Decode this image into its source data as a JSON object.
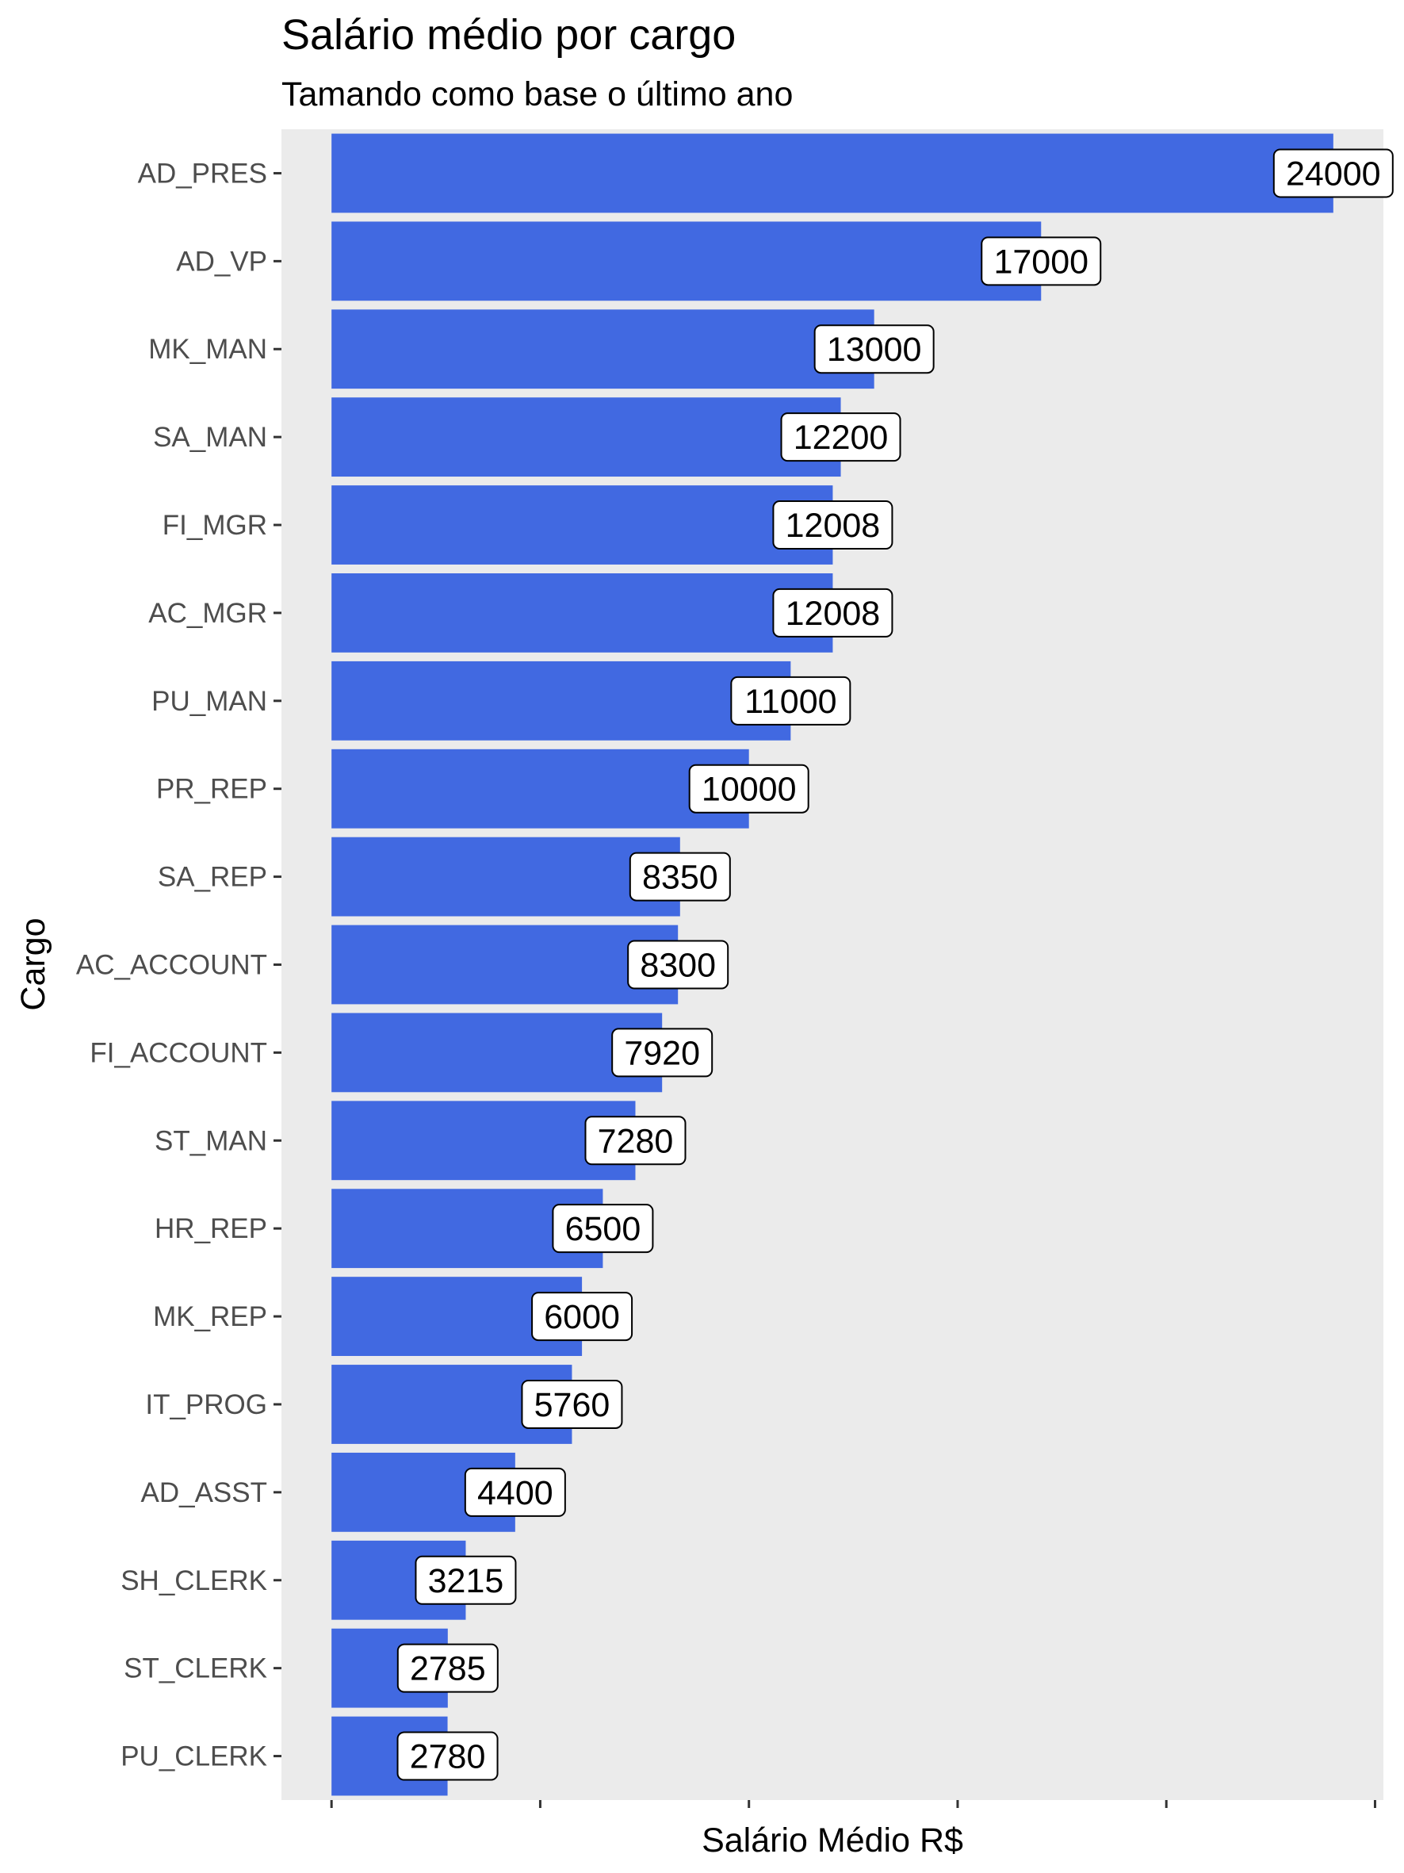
{
  "chart_data": {
    "type": "bar",
    "orientation": "horizontal",
    "title": "Salário médio por cargo",
    "subtitle": "Tamando como base o último ano",
    "xlabel": "Salário Médio R$",
    "ylabel": "Cargo",
    "categories": [
      "AD_PRES",
      "AD_VP",
      "MK_MAN",
      "SA_MAN",
      "FI_MGR",
      "AC_MGR",
      "PU_MAN",
      "PR_REP",
      "SA_REP",
      "AC_ACCOUNT",
      "FI_ACCOUNT",
      "ST_MAN",
      "HR_REP",
      "MK_REP",
      "IT_PROG",
      "AD_ASST",
      "SH_CLERK",
      "ST_CLERK",
      "PU_CLERK"
    ],
    "values": [
      24000,
      17000,
      13000,
      12200,
      12008,
      12008,
      11000,
      10000,
      8350,
      8300,
      7920,
      7280,
      6500,
      6000,
      5760,
      4400,
      3215,
      2785,
      2780
    ],
    "data_labels": [
      "24000",
      "17000",
      "13000",
      "12200",
      "12008",
      "12008",
      "11000",
      "10000",
      "8350",
      "8300",
      "7920",
      "7280",
      "6500",
      "6000",
      "5760",
      "4400",
      "3215",
      "2785",
      "2780"
    ],
    "xlim": [
      -1200,
      25200
    ],
    "x_ticks": [
      0,
      5000,
      10000,
      15000,
      20000,
      25000
    ],
    "x_tick_labels_shown": false,
    "grid": false,
    "bar_color": "#4169E1",
    "panel_color": "#EBEBEB",
    "legend": "none"
  }
}
